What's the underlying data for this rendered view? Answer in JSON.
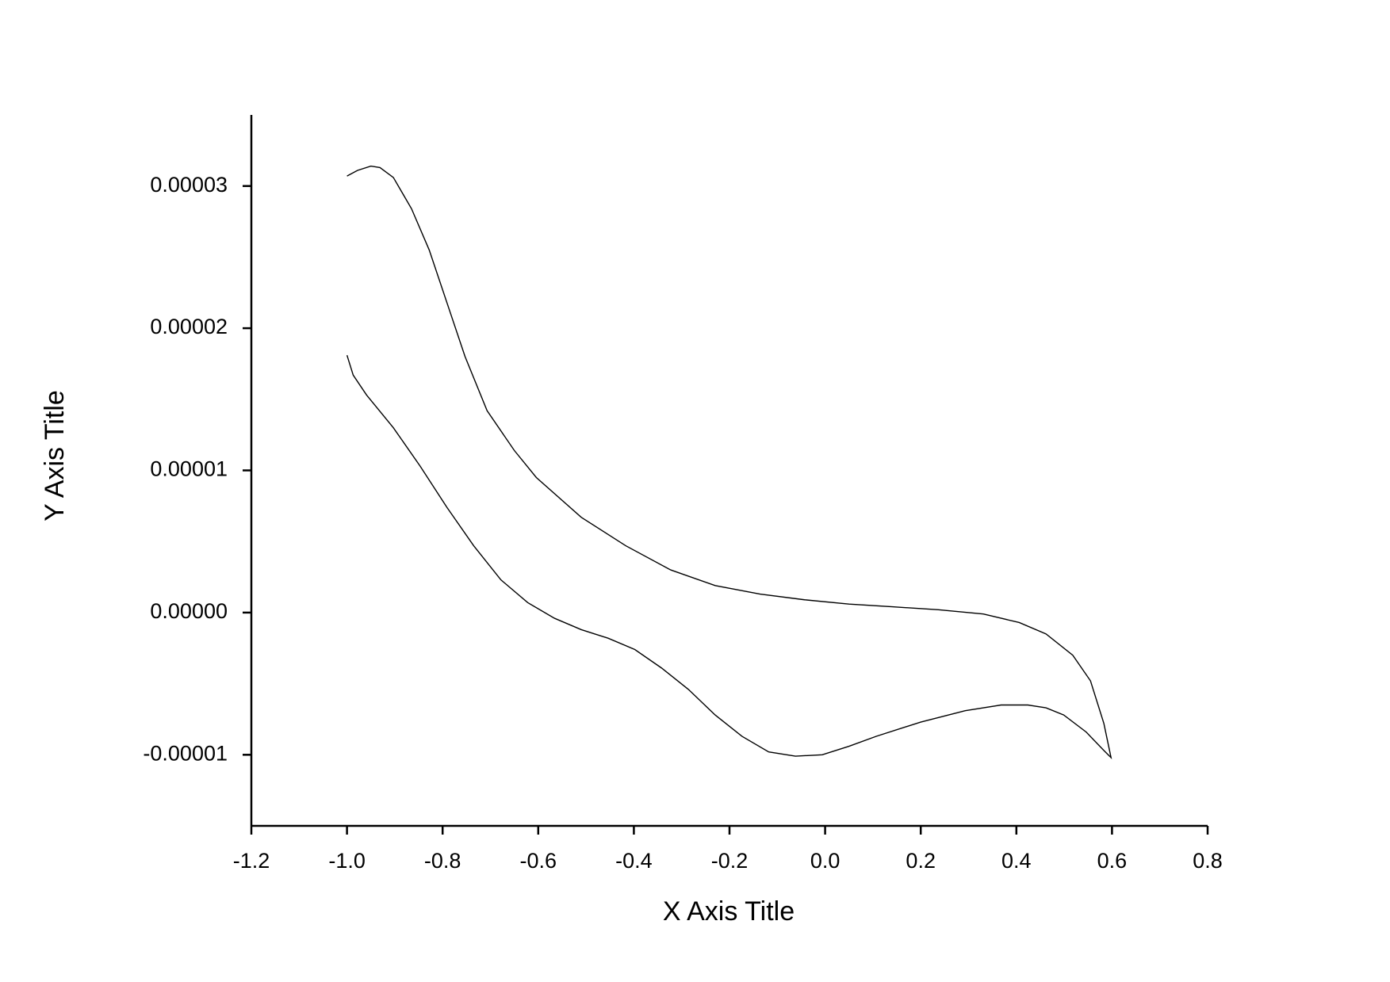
{
  "chart_data": {
    "type": "line",
    "x_label": "X Axis Title",
    "y_label": "Y Axis Title",
    "xlim": [
      -1.2,
      0.8
    ],
    "xticks": [
      -1.2,
      {
        "value": -1.0,
        "label": "-1.0"
      },
      -0.8,
      -0.6,
      -0.4,
      -0.2,
      {
        "value": 0,
        "label": "0.0"
      },
      0.2,
      0.4,
      0.6,
      0.8
    ],
    "ylim": [
      -1.5e-05,
      3.5e-05
    ],
    "yticks": [
      -1e-05,
      {
        "value": 0,
        "label": "0.00000"
      },
      1e-05,
      2e-05,
      3e-05
    ],
    "grid": false,
    "series": [
      {
        "color": "#000000",
        "x": [
          -1.0,
          -0.978,
          -0.95,
          -0.931,
          -0.903,
          -0.865,
          -0.828,
          -0.791,
          -0.753,
          -0.707,
          -0.65,
          -0.604,
          -0.51,
          -0.417,
          -0.323,
          -0.23,
          -0.136,
          -0.043,
          0.05,
          0.144,
          0.237,
          0.331,
          0.406,
          0.462,
          0.518,
          0.555,
          0.583,
          0.598,
          0.583,
          0.546,
          0.499,
          0.462,
          0.424,
          0.368,
          0.293,
          0.2,
          0.107,
          0.05,
          -0.006,
          -0.062,
          -0.118,
          -0.174,
          -0.23,
          -0.286,
          -0.342,
          -0.398,
          -0.454,
          -0.51,
          -0.566,
          -0.622,
          -0.678,
          -0.735,
          -0.791,
          -0.847,
          -0.903,
          -0.959,
          -0.987,
          -1.0
        ],
        "values": [
          3.07e-05,
          3.11e-05,
          3.14e-05,
          3.13e-05,
          3.06e-05,
          2.84e-05,
          2.55e-05,
          2.18e-05,
          1.8e-05,
          1.42e-05,
          1.14e-05,
          9.5e-06,
          6.7e-06,
          4.7e-06,
          3e-06,
          1.9e-06,
          1.3e-06,
          9e-07,
          6e-07,
          4e-07,
          2e-07,
          -1e-07,
          -7e-07,
          -1.5e-06,
          -3e-06,
          -4.8e-06,
          -7.8e-06,
          -1.02e-05,
          -9.7e-06,
          -8.4e-06,
          -7.2e-06,
          -6.7e-06,
          -6.5e-06,
          -6.5e-06,
          -6.9e-06,
          -7.7e-06,
          -8.7e-06,
          -9.4e-06,
          -1e-05,
          -1.01e-05,
          -9.8e-06,
          -8.7e-06,
          -7.2e-06,
          -5.4e-06,
          -3.9e-06,
          -2.6e-06,
          -1.8e-06,
          -1.2e-06,
          -4e-07,
          7e-07,
          2.3e-06,
          4.7e-06,
          7.4e-06,
          1.03e-05,
          1.3e-05,
          1.53e-05,
          1.67e-05,
          1.81e-05
        ]
      }
    ]
  }
}
